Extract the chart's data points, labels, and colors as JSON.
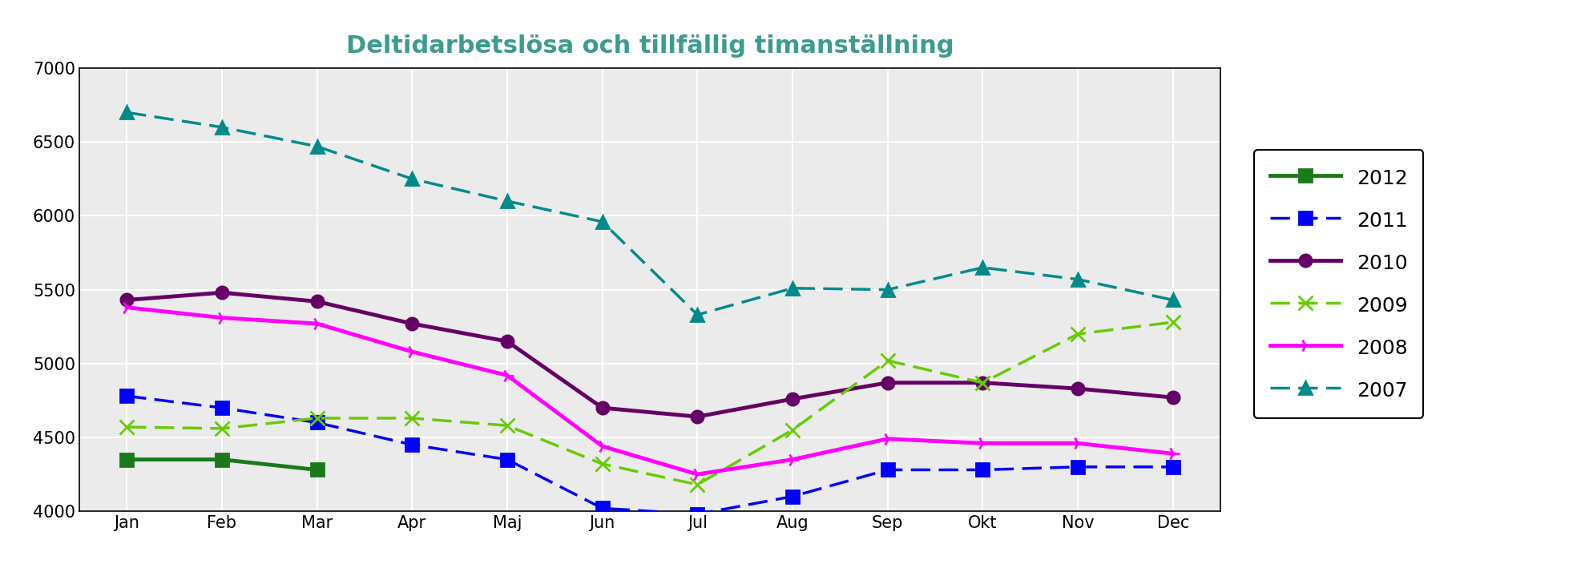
{
  "title": "Deltidarbetslösa och tillfällig timanställning",
  "title_color": "#3d9b8f",
  "months": [
    "Jan",
    "Feb",
    "Mar",
    "Apr",
    "Maj",
    "Jun",
    "Jul",
    "Aug",
    "Sep",
    "Okt",
    "Nov",
    "Dec"
  ],
  "series": {
    "2012": {
      "values": [
        4350,
        4350,
        4280,
        null,
        null,
        null,
        null,
        null,
        null,
        null,
        null,
        null
      ],
      "color": "#1a7a1a",
      "linestyle": "solid",
      "marker": "s",
      "linewidth": 3.5,
      "markersize": 12
    },
    "2011": {
      "values": [
        4780,
        4700,
        4600,
        4450,
        4350,
        4020,
        3980,
        4100,
        4280,
        4280,
        4300,
        4300
      ],
      "color": "#0000ff",
      "linestyle": "dashed",
      "marker": "s",
      "linewidth": 2.5,
      "markersize": 11
    },
    "2010": {
      "values": [
        5430,
        5480,
        5420,
        5270,
        5150,
        4700,
        4640,
        4760,
        4870,
        4870,
        4830,
        4770
      ],
      "color": "#660066",
      "linestyle": "solid",
      "marker": "o",
      "linewidth": 3.5,
      "markersize": 11
    },
    "2009": {
      "values": [
        4570,
        4560,
        4630,
        4630,
        4580,
        4320,
        4180,
        4550,
        5020,
        4870,
        5200,
        5280
      ],
      "color": "#66cc00",
      "linestyle": "dashed",
      "marker": "x",
      "linewidth": 2.5,
      "markersize": 13
    },
    "2008": {
      "values": [
        5380,
        5310,
        5270,
        5080,
        4920,
        4440,
        4250,
        4350,
        4490,
        4460,
        4460,
        4390
      ],
      "color": "#ff00ff",
      "linestyle": "solid",
      "marker": "4",
      "linewidth": 3.5,
      "markersize": 12
    },
    "2007": {
      "values": [
        6700,
        6600,
        6470,
        6250,
        6100,
        5960,
        5330,
        5510,
        5500,
        5650,
        5570,
        5430
      ],
      "color": "#008b8b",
      "linestyle": "dashed",
      "marker": "^",
      "linewidth": 2.5,
      "markersize": 11
    }
  },
  "ylim": [
    4000,
    7000
  ],
  "yticks": [
    4000,
    4500,
    5000,
    5500,
    6000,
    6500,
    7000
  ],
  "figure_bg": "#ffffff",
  "plot_bg_color": "#ebebeb",
  "grid_color": "#ffffff",
  "legend_order": [
    "2012",
    "2011",
    "2010",
    "2009",
    "2008",
    "2007"
  ],
  "dashed_years": [
    "2011",
    "2009",
    "2007"
  ]
}
